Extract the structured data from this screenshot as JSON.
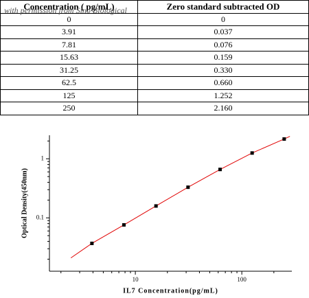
{
  "table": {
    "header": [
      "Concentration ( pg/mL)",
      "Zero standard subtracted OD"
    ],
    "rows": [
      [
        "0",
        "0"
      ],
      [
        "3.91",
        "0.037"
      ],
      [
        "7.81",
        "0.076"
      ],
      [
        "15.63",
        "0.159"
      ],
      [
        "31.25",
        "0.330"
      ],
      [
        "62.5",
        "0.660"
      ],
      [
        "125",
        "1.252"
      ],
      [
        "250",
        "2.160"
      ]
    ]
  },
  "watermark": "with permission from Sino Biological",
  "chart_data": {
    "type": "scatter",
    "x_label": "IL7 Concentration(pg/mL)",
    "y_label": "Optical Density(450nm)",
    "x": [
      3.91,
      7.81,
      15.63,
      31.25,
      62.5,
      125,
      250
    ],
    "values": [
      0.037,
      0.076,
      0.159,
      0.33,
      0.66,
      1.252,
      2.16
    ],
    "color": "#000000",
    "fit_line": {
      "color": "#e00000",
      "x": [
        2.48,
        3.91,
        7.81,
        15.63,
        31.25,
        62.5,
        125,
        250,
        283
      ],
      "y": [
        0.021,
        0.037,
        0.076,
        0.159,
        0.33,
        0.66,
        1.252,
        2.16,
        2.4
      ]
    },
    "xlog": true,
    "ylog": true,
    "xlim": [
      1.56,
      295
    ],
    "ylim": [
      0.0125,
      2.5
    ],
    "xticks": [
      10,
      100
    ],
    "yticks": [
      0.1,
      1
    ],
    "x_minor_ticks": [
      2,
      3,
      4,
      5,
      6,
      7,
      8,
      9,
      20,
      30,
      40,
      50,
      60,
      70,
      80,
      90,
      200
    ],
    "y_minor_ticks": [
      0.02,
      0.03,
      0.04,
      0.05,
      0.06,
      0.07,
      0.08,
      0.09,
      0.2,
      0.3,
      0.4,
      0.5,
      0.6,
      0.7,
      0.8,
      0.9,
      2
    ]
  }
}
